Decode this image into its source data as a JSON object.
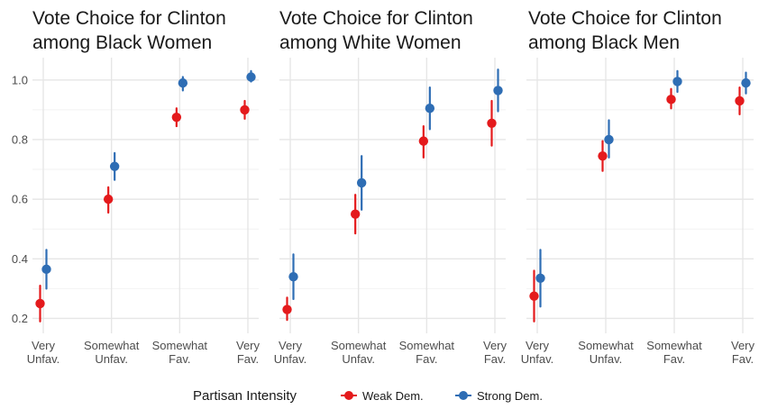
{
  "chart_data": [
    {
      "type": "scatter",
      "title": [
        "Vote Choice for Clinton",
        "among Black Women"
      ],
      "categories": [
        [
          "Very",
          "Unfav."
        ],
        [
          "Somewhat",
          "Unfav."
        ],
        [
          "Somewhat",
          "Fav."
        ],
        [
          "Very",
          "Fav."
        ]
      ],
      "ylim": [
        0.15,
        1.075
      ],
      "yticks": [
        "0.2",
        "0.4",
        "0.6",
        "0.8",
        "1.0"
      ],
      "show_y_labels": true,
      "series": [
        {
          "name": "Weak Dem.",
          "values": [
            0.25,
            0.6,
            0.875,
            0.9
          ],
          "lower": [
            0.19,
            0.555,
            0.845,
            0.87
          ],
          "upper": [
            0.31,
            0.64,
            0.905,
            0.93
          ]
        },
        {
          "name": "Strong Dem.",
          "values": [
            0.365,
            0.71,
            0.99,
            1.01
          ],
          "lower": [
            0.3,
            0.665,
            0.965,
            0.995
          ],
          "upper": [
            0.43,
            0.755,
            1.01,
            1.03
          ]
        }
      ]
    },
    {
      "type": "scatter",
      "title": [
        "Vote Choice for Clinton",
        "among White Women"
      ],
      "categories": [
        [
          "Very",
          "Unfav."
        ],
        [
          "Somewhat",
          "Unfav."
        ],
        [
          "Somewhat",
          "Fav."
        ],
        [
          "Very",
          "Fav."
        ]
      ],
      "ylim": [
        0.15,
        1.075
      ],
      "yticks": [
        "0.2",
        "0.4",
        "0.6",
        "0.8",
        "1.0"
      ],
      "show_y_labels": false,
      "series": [
        {
          "name": "Weak Dem.",
          "values": [
            0.23,
            0.55,
            0.795,
            0.855
          ],
          "lower": [
            0.195,
            0.485,
            0.74,
            0.78
          ],
          "upper": [
            0.27,
            0.615,
            0.845,
            0.93
          ]
        },
        {
          "name": "Strong Dem.",
          "values": [
            0.34,
            0.655,
            0.905,
            0.965
          ],
          "lower": [
            0.265,
            0.565,
            0.835,
            0.895
          ],
          "upper": [
            0.415,
            0.745,
            0.975,
            1.035
          ]
        }
      ]
    },
    {
      "type": "scatter",
      "title": [
        "Vote Choice for Clinton",
        "among Black Men"
      ],
      "categories": [
        [
          "Very",
          "Unfav."
        ],
        [
          "Somewhat",
          "Unfav."
        ],
        [
          "Somewhat",
          "Fav."
        ],
        [
          "Very",
          "Fav."
        ]
      ],
      "ylim": [
        0.15,
        1.075
      ],
      "yticks": [
        "0.2",
        "0.4",
        "0.6",
        "0.8",
        "1.0"
      ],
      "show_y_labels": false,
      "series": [
        {
          "name": "Weak Dem.",
          "values": [
            0.275,
            0.745,
            0.935,
            0.93
          ],
          "lower": [
            0.19,
            0.695,
            0.905,
            0.885
          ],
          "upper": [
            0.36,
            0.795,
            0.97,
            0.975
          ]
        },
        {
          "name": "Strong Dem.",
          "values": [
            0.335,
            0.8,
            0.995,
            0.99
          ],
          "lower": [
            0.24,
            0.74,
            0.96,
            0.955
          ],
          "upper": [
            0.43,
            0.865,
            1.03,
            1.025
          ]
        }
      ]
    }
  ],
  "legend": {
    "title": "Partisan Intensity",
    "items": [
      {
        "label": "Weak Dem.",
        "color": "#E41A1C"
      },
      {
        "label": "Strong Dem.",
        "color": "#2E6DB4"
      }
    ],
    "placement": "bottom"
  },
  "colors": {
    "weak": "#E41A1C",
    "strong": "#2E6DB4",
    "grid_major": "#e6e6e6",
    "grid_minor": "#f2f2f2"
  }
}
